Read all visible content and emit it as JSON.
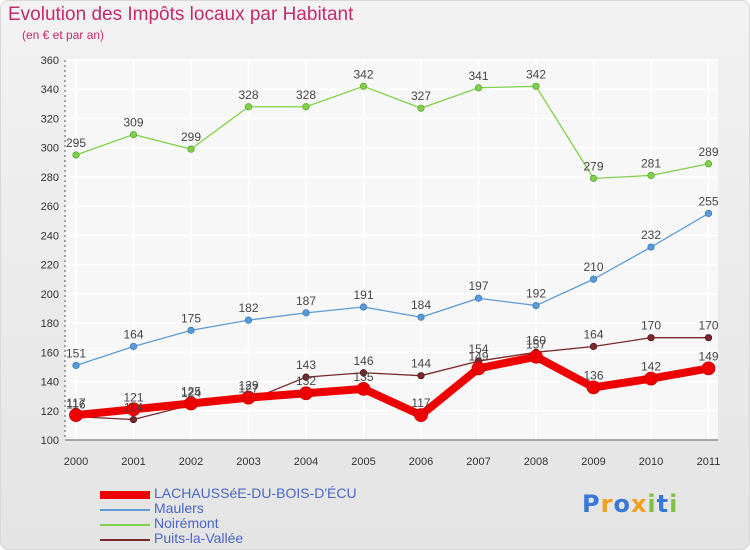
{
  "chart_data": {
    "type": "line",
    "title": "Evolution des Impôts locaux par Habitant",
    "subtitle": "(en € et par an)",
    "categories": [
      "2000",
      "2001",
      "2002",
      "2003",
      "2004",
      "2005",
      "2006",
      "2007",
      "2008",
      "2009",
      "2010",
      "2011"
    ],
    "ylim": [
      100,
      360
    ],
    "yticks": [
      100,
      120,
      140,
      160,
      180,
      200,
      220,
      240,
      260,
      280,
      300,
      320,
      340,
      360
    ],
    "grid": true,
    "legend_position": "bottom-left",
    "series": [
      {
        "name": "LACHAUSSéE-DU-BOIS-D'ÉCU",
        "color": "#ee0000",
        "values": [
          117,
          121,
          125,
          129,
          132,
          135,
          117,
          149,
          157,
          136,
          142,
          149
        ]
      },
      {
        "name": "Maulers",
        "color": "#5b9bd5",
        "values": [
          151,
          164,
          175,
          182,
          187,
          191,
          184,
          197,
          192,
          210,
          232,
          255
        ]
      },
      {
        "name": "Noirémont",
        "color": "#7fd14b",
        "values": [
          295,
          309,
          299,
          328,
          328,
          342,
          327,
          341,
          342,
          279,
          281,
          289
        ]
      },
      {
        "name": "Puits-la-Vallée",
        "color": "#7a2a2a",
        "values": [
          116,
          114,
          124,
          127,
          143,
          146,
          144,
          154,
          160,
          164,
          170,
          170
        ]
      }
    ]
  },
  "logo": {
    "letters": [
      {
        "ch": "P",
        "color": "#3a78d8"
      },
      {
        "ch": "r",
        "color": "#f0a020"
      },
      {
        "ch": "o",
        "color": "#3a78d8"
      },
      {
        "ch": "x",
        "color": "#f0a020"
      },
      {
        "ch": "i",
        "color": "#7fc241"
      },
      {
        "ch": "t",
        "color": "#3a78d8"
      },
      {
        "ch": "i",
        "color": "#7fc241"
      }
    ]
  }
}
